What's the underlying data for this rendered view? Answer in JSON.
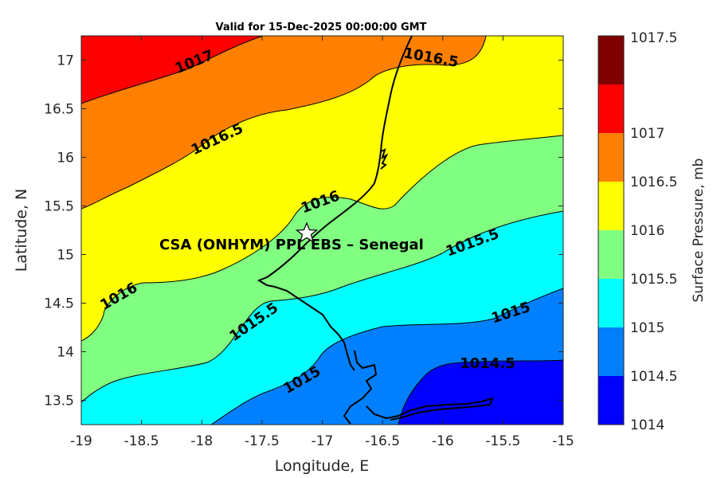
{
  "title": "Valid for 15-Dec-2025 00:00:00 GMT",
  "x_axis": {
    "label": "Longitude, E",
    "ticks": [
      "-19",
      "-18.5",
      "-18",
      "-17.5",
      "-17",
      "-16.5",
      "-16",
      "-15.5",
      "-15"
    ]
  },
  "y_axis": {
    "label": "Latitude, N",
    "ticks": [
      "13.5",
      "14",
      "14.5",
      "15",
      "15.5",
      "16",
      "16.5",
      "17"
    ]
  },
  "colorbar": {
    "label": "Surface Pressure, mb",
    "ticks": [
      "1014",
      "1014.5",
      "1015",
      "1015.5",
      "1016",
      "1016.5",
      "1017",
      "1017.5"
    ],
    "colors": [
      "#0000ff",
      "#0080ff",
      "#00ffff",
      "#80ff80",
      "#ffff00",
      "#ff8000",
      "#ff0000",
      "#800000"
    ]
  },
  "contour_labels": [
    {
      "text": "1017"
    },
    {
      "text": "1016.5"
    },
    {
      "text": "1016.5"
    },
    {
      "text": "1016"
    },
    {
      "text": "1016"
    },
    {
      "text": "1015.5"
    },
    {
      "text": "1015.5"
    },
    {
      "text": "1015"
    },
    {
      "text": "1015"
    },
    {
      "text": "1014.5"
    }
  ],
  "site": {
    "name": "CSA (ONHYM) PPL EBS  – Senegal",
    "marker": "star-icon"
  },
  "chart_data": {
    "type": "contour",
    "variable": "Surface Pressure, mb",
    "xlim": [
      -19,
      -15
    ],
    "ylim": [
      13.25,
      17.25
    ],
    "levels": [
      1014,
      1014.5,
      1015,
      1015.5,
      1016,
      1016.5,
      1017,
      1017.5
    ],
    "contour_values": [
      "1017",
      "1016.5",
      "1016.5",
      "1016",
      "1016",
      "1015.5",
      "1015.5",
      "1015",
      "1015",
      "1014.5"
    ],
    "site_location": {
      "lon": -17.12,
      "lat": 15.23
    }
  }
}
